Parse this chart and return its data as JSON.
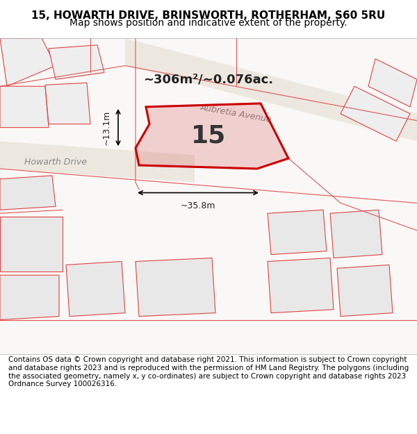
{
  "title_line1": "15, HOWARTH DRIVE, BRINSWORTH, ROTHERHAM, S60 5RU",
  "title_line2": "Map shows position and indicative extent of the property.",
  "footer_text": "Contains OS data © Crown copyright and database right 2021. This information is subject to Crown copyright and database rights 2023 and is reproduced with the permission of HM Land Registry. The polygons (including the associated geometry, namely x, y co-ordinates) are subject to Crown copyright and database rights 2023 Ordnance Survey 100026316.",
  "area_label": "~306m²/~0.076ac.",
  "property_number": "15",
  "dim_width": "~35.8m",
  "dim_height": "~13.1m",
  "bg_color": "#f5f5f5",
  "map_bg": "#ffffff",
  "road_color": "#e8e0d0",
  "building_outline_color": "#cc3333",
  "highlight_fill": "#cc3333",
  "highlight_alpha": 0.18,
  "street_label_aubretia": "Aubretia Avenue",
  "street_label_howarth": "Howarth Drive",
  "title_fontsize": 11,
  "subtitle_fontsize": 10,
  "footer_fontsize": 7.5
}
